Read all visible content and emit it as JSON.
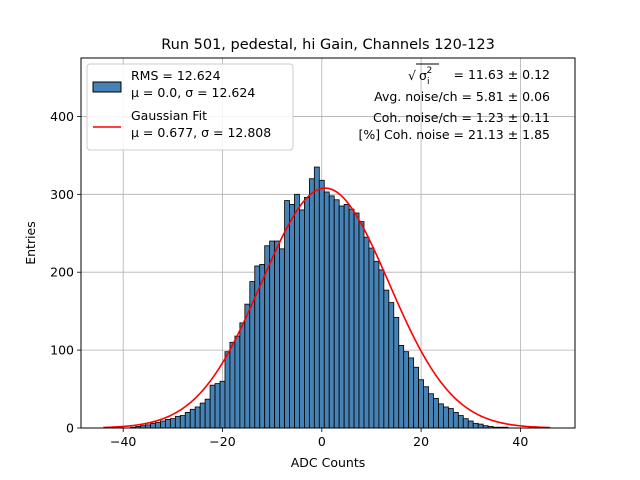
{
  "chart_data": {
    "type": "bar",
    "title": "Run 501, pedestal, hi Gain, Channels 120-123",
    "xlabel": "ADC Counts",
    "ylabel": "Entries",
    "xlim": [
      -48.5,
      51
    ],
    "ylim": [
      0,
      475
    ],
    "xticks": [
      -40,
      -20,
      0,
      20,
      40
    ],
    "xtick_labels": [
      "−40",
      "−20",
      "0",
      "20",
      "40"
    ],
    "yticks": [
      0,
      100,
      200,
      300,
      400
    ],
    "ytick_labels": [
      "0",
      "100",
      "200",
      "300",
      "400"
    ],
    "grid": true,
    "bin_width": 1,
    "histogram": {
      "name": "RMS = 12.624",
      "color": "#4682b4",
      "edgecolor": "#000000",
      "x": [
        -38,
        -37,
        -36,
        -35,
        -34,
        -33,
        -32,
        -31,
        -30,
        -29,
        -28,
        -27,
        -26,
        -25,
        -24,
        -23,
        -22,
        -21,
        -20,
        -19,
        -18,
        -17,
        -16,
        -15,
        -14,
        -13,
        -12,
        -11,
        -10,
        -9,
        -8,
        -7,
        -6,
        -5,
        -4,
        -3,
        -2,
        -1,
        0,
        1,
        2,
        3,
        4,
        5,
        6,
        7,
        8,
        9,
        10,
        11,
        12,
        13,
        14,
        15,
        16,
        17,
        18,
        19,
        20,
        21,
        22,
        23,
        24,
        25,
        26,
        27,
        28,
        29,
        30,
        31,
        32,
        33,
        34,
        35,
        36,
        37,
        38,
        39,
        40
      ],
      "values": [
        1,
        2,
        3,
        4,
        6,
        7,
        9,
        11,
        12,
        15,
        16,
        20,
        24,
        27,
        32,
        37,
        55,
        57,
        60,
        98,
        110,
        118,
        135,
        159,
        188,
        208,
        210,
        234,
        240,
        240,
        230,
        292,
        287,
        300,
        280,
        296,
        320,
        335,
        318,
        303,
        298,
        293,
        285,
        287,
        281,
        276,
        265,
        245,
        231,
        214,
        203,
        177,
        161,
        142,
        106,
        98,
        90,
        78,
        62,
        53,
        44,
        38,
        31,
        27,
        25,
        20,
        16,
        12,
        9,
        6,
        5,
        3,
        2,
        1,
        1,
        1,
        0,
        0,
        0
      ]
    },
    "gaussian_fit": {
      "name": "Gaussian Fit",
      "color": "#ff0000",
      "mu": 0.677,
      "sigma": 12.808,
      "amplitude": 308,
      "x_range": [
        -44,
        46
      ]
    },
    "legend": {
      "placement": "top-left",
      "entries": [
        {
          "line1": "RMS = 12.624",
          "line2": "μ = 0.0, σ = 12.624"
        },
        {
          "line1": "Gaussian Fit",
          "line2": "μ = 0.677, σ = 12.808"
        }
      ]
    },
    "annotations": {
      "total_noise_value": "= 11.63 ± 0.12",
      "avg_noise": "Avg. noise/ch = 5.81 ± 0.06",
      "coh_noise": "Coh. noise/ch = 1.23 ± 0.11",
      "coh_noise_pct": "[%] Coh. noise = 21.13 ± 1.85"
    }
  }
}
